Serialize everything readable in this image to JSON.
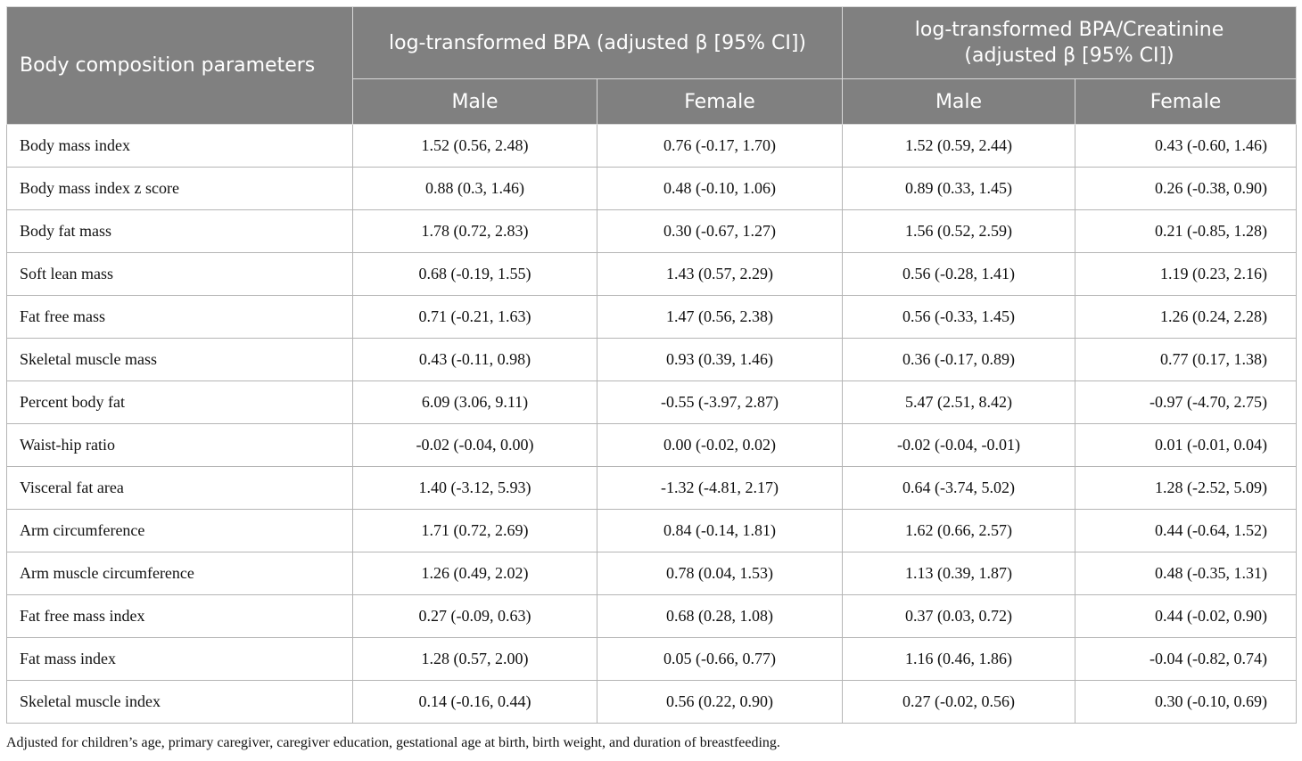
{
  "header": {
    "param_label": "Body composition parameters",
    "group1": "log-transformed BPA (adjusted β [95% CI])",
    "group2_line1": "log-transformed BPA/Creatinine",
    "group2_line2": "(adjusted β [95% CI])",
    "male": "Male",
    "female": "Female"
  },
  "rows": [
    {
      "param": "Body mass index",
      "bpa_male": "1.52 (0.56, 2.48)",
      "bpa_female": "0.76 (-0.17, 1.70)",
      "cr_male": "1.52 (0.59, 2.44)",
      "cr_female": "0.43 (-0.60, 1.46)"
    },
    {
      "param": "Body mass index z score",
      "bpa_male": "0.88 (0.3, 1.46)",
      "bpa_female": "0.48 (-0.10, 1.06)",
      "cr_male": "0.89 (0.33, 1.45)",
      "cr_female": "0.26 (-0.38, 0.90)"
    },
    {
      "param": "Body fat mass",
      "bpa_male": "1.78 (0.72, 2.83)",
      "bpa_female": "0.30 (-0.67, 1.27)",
      "cr_male": "1.56 (0.52, 2.59)",
      "cr_female": "0.21 (-0.85, 1.28)"
    },
    {
      "param": "Soft lean mass",
      "bpa_male": "0.68 (-0.19, 1.55)",
      "bpa_female": "1.43 (0.57, 2.29)",
      "cr_male": "0.56 (-0.28, 1.41)",
      "cr_female": "1.19 (0.23, 2.16)"
    },
    {
      "param": "Fat free mass",
      "bpa_male": "0.71 (-0.21, 1.63)",
      "bpa_female": "1.47 (0.56, 2.38)",
      "cr_male": "0.56 (-0.33, 1.45)",
      "cr_female": "1.26 (0.24, 2.28)"
    },
    {
      "param": "Skeletal muscle mass",
      "bpa_male": "0.43 (-0.11, 0.98)",
      "bpa_female": "0.93 (0.39, 1.46)",
      "cr_male": "0.36 (-0.17, 0.89)",
      "cr_female": "0.77 (0.17, 1.38)"
    },
    {
      "param": "Percent body fat",
      "bpa_male": "6.09 (3.06, 9.11)",
      "bpa_female": "-0.55 (-3.97, 2.87)",
      "cr_male": "5.47 (2.51, 8.42)",
      "cr_female": "-0.97 (-4.70, 2.75)"
    },
    {
      "param": "Waist-hip ratio",
      "bpa_male": "-0.02 (-0.04, 0.00)",
      "bpa_female": "0.00 (-0.02, 0.02)",
      "cr_male": "-0.02 (-0.04, -0.01)",
      "cr_female": "0.01 (-0.01, 0.04)"
    },
    {
      "param": "Visceral fat area",
      "bpa_male": "1.40 (-3.12, 5.93)",
      "bpa_female": "-1.32 (-4.81, 2.17)",
      "cr_male": "0.64 (-3.74, 5.02)",
      "cr_female": "1.28 (-2.52, 5.09)"
    },
    {
      "param": "Arm circumference",
      "bpa_male": "1.71 (0.72, 2.69)",
      "bpa_female": "0.84 (-0.14, 1.81)",
      "cr_male": "1.62 (0.66, 2.57)",
      "cr_female": "0.44 (-0.64, 1.52)"
    },
    {
      "param": "Arm muscle circumference",
      "bpa_male": "1.26 (0.49, 2.02)",
      "bpa_female": "0.78 (0.04, 1.53)",
      "cr_male": "1.13 (0.39, 1.87)",
      "cr_female": "0.48 (-0.35, 1.31)"
    },
    {
      "param": "Fat free mass index",
      "bpa_male": "0.27 (-0.09, 0.63)",
      "bpa_female": "0.68 (0.28, 1.08)",
      "cr_male": "0.37 (0.03, 0.72)",
      "cr_female": "0.44 (-0.02, 0.90)"
    },
    {
      "param": "Fat mass index",
      "bpa_male": "1.28 (0.57, 2.00)",
      "bpa_female": "0.05 (-0.66, 0.77)",
      "cr_male": "1.16 (0.46, 1.86)",
      "cr_female": "-0.04 (-0.82, 0.74)"
    },
    {
      "param": "Skeletal muscle index",
      "bpa_male": "0.14 (-0.16, 0.44)",
      "bpa_female": "0.56 (0.22, 0.90)",
      "cr_male": "0.27 (-0.02, 0.56)",
      "cr_female": "0.30 (-0.10, 0.69)"
    }
  ],
  "footnote": "Adjusted for children’s age, primary caregiver, caregiver education, gestational age at birth, birth weight, and duration of breastfeeding."
}
